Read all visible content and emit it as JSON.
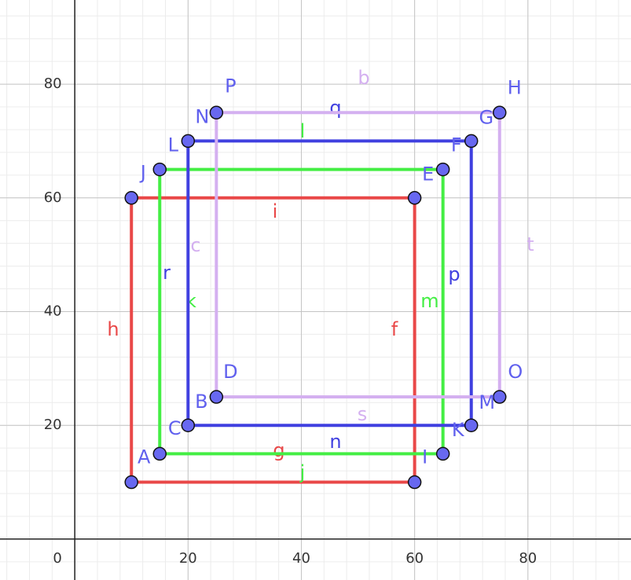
{
  "axes": {
    "xlim": [
      -13.2,
      98.2
    ],
    "ylim": [
      -7.2,
      94.8
    ],
    "xticks": [
      0,
      20,
      40,
      60,
      80
    ],
    "yticks": [
      20,
      40,
      60,
      80
    ]
  },
  "squares": [
    {
      "color": "#e94848",
      "corners": [
        [
          10,
          10
        ],
        [
          60,
          10
        ],
        [
          60,
          60
        ],
        [
          10,
          60
        ]
      ],
      "point_labels": [
        [],
        [],
        [],
        []
      ],
      "segment_labels": [
        "g",
        "f",
        "i",
        "h"
      ]
    },
    {
      "color": "#44ee44",
      "corners": [
        [
          15,
          15
        ],
        [
          65,
          15
        ],
        [
          65,
          65
        ],
        [
          15,
          65
        ]
      ],
      "point_labels": [
        [
          "A"
        ],
        [
          "I"
        ],
        [
          "E"
        ],
        [
          "J"
        ]
      ],
      "segment_labels": [
        "j",
        "m",
        "l",
        "k"
      ]
    },
    {
      "color": "#4040e0",
      "corners": [
        [
          20,
          20
        ],
        [
          70,
          20
        ],
        [
          70,
          70
        ],
        [
          20,
          70
        ]
      ],
      "point_labels": [
        [
          "C"
        ],
        [
          "K"
        ],
        [
          "F"
        ],
        [
          "L"
        ]
      ],
      "segment_labels": [
        "n",
        "p",
        "q",
        "r"
      ]
    },
    {
      "color": "#d4b0f0",
      "corners": [
        [
          25,
          25
        ],
        [
          75,
          25
        ],
        [
          75,
          75
        ],
        [
          25,
          75
        ]
      ],
      "point_labels": [
        [
          "B",
          "D"
        ],
        [
          "M",
          "O"
        ],
        [
          "G",
          "H"
        ],
        [
          "N",
          "P"
        ]
      ],
      "segment_labels": [
        "s",
        "t",
        "b",
        "c"
      ]
    }
  ]
}
